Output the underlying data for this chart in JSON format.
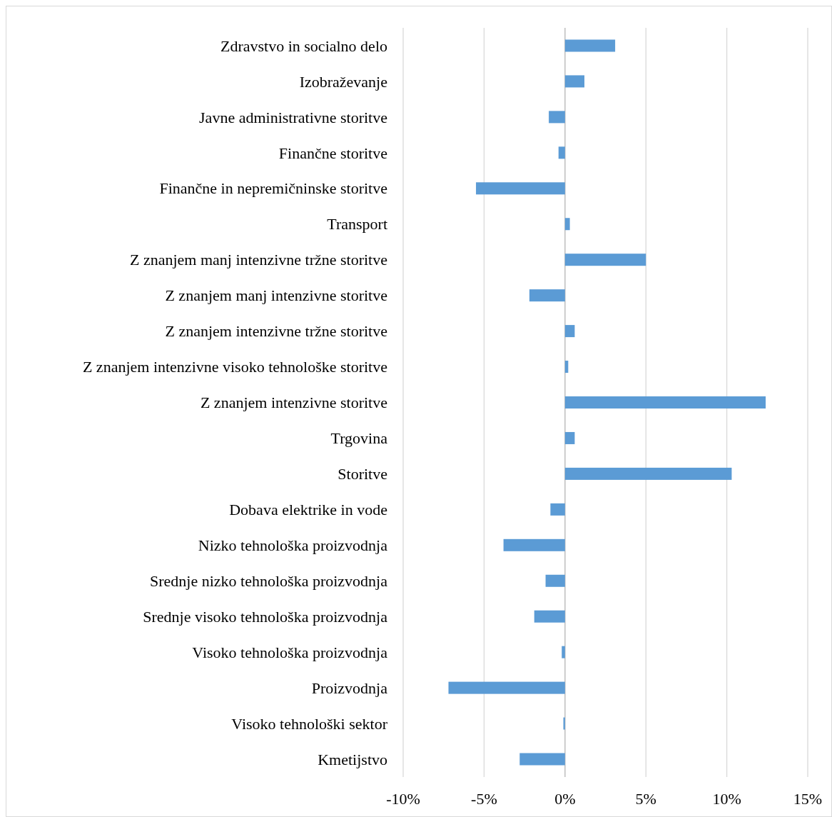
{
  "chart_data": {
    "type": "bar",
    "orientation": "horizontal",
    "categories": [
      "Zdravstvo in socialno delo",
      "Izobraževanje",
      "Javne administrativne storitve",
      "Finančne storitve",
      "Finančne in nepremičninske storitve",
      "Transport",
      "Z znanjem manj intenzivne tržne storitve",
      "Z znanjem manj intenzivne storitve",
      "Z znanjem intenzivne tržne storitve",
      "Z znanjem intenzivne visoko tehnološke storitve",
      "Z znanjem intenzivne storitve",
      "Trgovina",
      "Storitve",
      "Dobava elektrike in vode",
      "Nizko tehnološka proizvodnja",
      "Srednje nizko tehnološka proizvodnja",
      "Srednje visoko tehnološka proizvodnja",
      "Visoko tehnološka proizvodnja",
      "Proizvodnja",
      "Visoko tehnološki sektor",
      "Kmetijstvo"
    ],
    "values": [
      3.1,
      1.2,
      -1.0,
      -0.4,
      -5.5,
      0.3,
      5.0,
      -2.2,
      0.6,
      0.2,
      12.4,
      0.6,
      10.3,
      -0.9,
      -3.8,
      -1.2,
      -1.9,
      -0.2,
      -7.2,
      -0.1,
      -2.8
    ],
    "color": "#5b9bd5",
    "xlim": [
      -10,
      15
    ],
    "xticks": [
      {
        "value": -10,
        "label": "-10%"
      },
      {
        "value": -5,
        "label": "-5%"
      },
      {
        "value": 0,
        "label": "0%"
      },
      {
        "value": 5,
        "label": "5%"
      },
      {
        "value": 10,
        "label": "10%"
      },
      {
        "value": 15,
        "label": "15%"
      }
    ],
    "grid": "x"
  }
}
